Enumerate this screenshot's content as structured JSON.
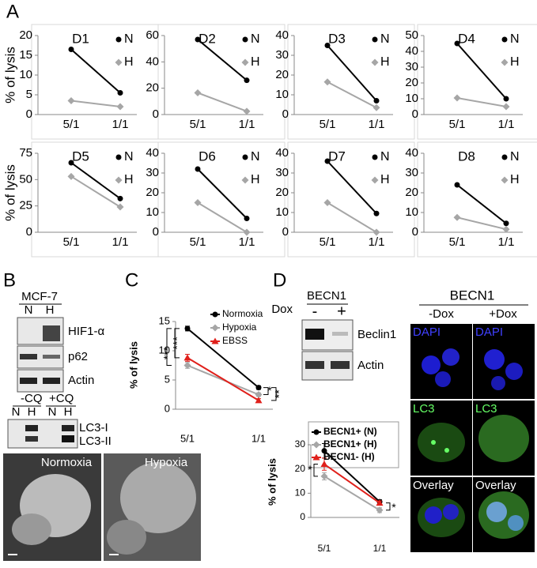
{
  "chart_data": [
    {
      "type": "line",
      "title": "D1",
      "ylabel": "% of lysis",
      "categories": [
        "5/1",
        "1/1"
      ],
      "ylim": [
        0,
        20
      ],
      "yticks": [
        0,
        5,
        10,
        15,
        20
      ],
      "series": [
        {
          "name": "N",
          "color": "#000000",
          "marker": "circle",
          "values": [
            16.5,
            5.5
          ]
        },
        {
          "name": "H",
          "color": "#a6a6a6",
          "marker": "diamond",
          "values": [
            3.5,
            2
          ]
        }
      ]
    },
    {
      "type": "line",
      "title": "D2",
      "categories": [
        "5/1",
        "1/1"
      ],
      "ylim": [
        0,
        60
      ],
      "yticks": [
        0,
        20,
        40,
        60
      ],
      "series": [
        {
          "name": "N",
          "color": "#000000",
          "marker": "circle",
          "values": [
            57,
            26
          ]
        },
        {
          "name": "H",
          "color": "#a6a6a6",
          "marker": "diamond",
          "values": [
            16.5,
            2.5
          ]
        }
      ]
    },
    {
      "type": "line",
      "title": "D3",
      "categories": [
        "5/1",
        "1/1"
      ],
      "ylim": [
        0,
        40
      ],
      "yticks": [
        0,
        10,
        20,
        30,
        40
      ],
      "series": [
        {
          "name": "N",
          "color": "#000000",
          "marker": "circle",
          "values": [
            35,
            7
          ]
        },
        {
          "name": "H",
          "color": "#a6a6a6",
          "marker": "diamond",
          "values": [
            16.5,
            3.5
          ]
        }
      ]
    },
    {
      "type": "line",
      "title": "D4",
      "categories": [
        "5/1",
        "1/1"
      ],
      "ylim": [
        0,
        50
      ],
      "yticks": [
        0,
        10,
        20,
        30,
        40,
        50
      ],
      "series": [
        {
          "name": "N",
          "color": "#000000",
          "marker": "circle",
          "values": [
            45,
            10
          ]
        },
        {
          "name": "H",
          "color": "#a6a6a6",
          "marker": "diamond",
          "values": [
            10.5,
            5
          ]
        }
      ]
    },
    {
      "type": "line",
      "title": "D5",
      "ylabel": "% of lysis",
      "categories": [
        "5/1",
        "1/1"
      ],
      "ylim": [
        0,
        75
      ],
      "yticks": [
        0,
        25,
        50,
        75
      ],
      "series": [
        {
          "name": "N",
          "color": "#000000",
          "marker": "circle",
          "values": [
            66,
            32
          ]
        },
        {
          "name": "H",
          "color": "#a6a6a6",
          "marker": "diamond",
          "values": [
            53,
            24
          ]
        }
      ]
    },
    {
      "type": "line",
      "title": "D6",
      "categories": [
        "5/1",
        "1/1"
      ],
      "ylim": [
        0,
        40
      ],
      "yticks": [
        0,
        10,
        20,
        30,
        40
      ],
      "series": [
        {
          "name": "N",
          "color": "#000000",
          "marker": "circle",
          "values": [
            32,
            7
          ]
        },
        {
          "name": "H",
          "color": "#a6a6a6",
          "marker": "diamond",
          "values": [
            15,
            0
          ]
        }
      ]
    },
    {
      "type": "line",
      "title": "D7",
      "categories": [
        "5/1",
        "1/1"
      ],
      "ylim": [
        0,
        40
      ],
      "yticks": [
        0,
        10,
        20,
        30,
        40
      ],
      "series": [
        {
          "name": "N",
          "color": "#000000",
          "marker": "circle",
          "values": [
            36,
            9.5
          ]
        },
        {
          "name": "H",
          "color": "#a6a6a6",
          "marker": "diamond",
          "values": [
            15,
            0
          ]
        }
      ]
    },
    {
      "type": "line",
      "title": "D8",
      "categories": [
        "5/1",
        "1/1"
      ],
      "ylim": [
        0,
        40
      ],
      "yticks": [
        0,
        10,
        20,
        30,
        40
      ],
      "series": [
        {
          "name": "N",
          "color": "#000000",
          "marker": "circle",
          "values": [
            24,
            4.5
          ]
        },
        {
          "name": "H",
          "color": "#a6a6a6",
          "marker": "diamond",
          "values": [
            7.5,
            1.5
          ]
        }
      ]
    },
    {
      "type": "line",
      "ylabel": "% of lysis",
      "categories": [
        "5/1",
        "1/1"
      ],
      "ylim": [
        0,
        15
      ],
      "yticks": [
        0,
        5,
        10,
        15
      ],
      "annotations": [
        "***",
        "***",
        "*",
        "**"
      ],
      "series": [
        {
          "name": "Normoxia",
          "color": "#000000",
          "marker": "circle",
          "values": [
            13.8,
            3.7
          ],
          "errors": [
            0.4,
            0.3
          ]
        },
        {
          "name": "Hypoxia",
          "color": "#a6a6a6",
          "marker": "diamond",
          "values": [
            7.5,
            2.5
          ],
          "errors": [
            0.5,
            0.3
          ]
        },
        {
          "name": "EBSS",
          "color": "#e0201b",
          "marker": "triangle",
          "values": [
            8.8,
            1.5
          ],
          "errors": [
            0.6,
            0.3
          ]
        }
      ]
    },
    {
      "type": "line",
      "ylabel": "% of lysis",
      "categories": [
        "5/1",
        "1/1"
      ],
      "ylim": [
        0,
        30
      ],
      "yticks": [
        0,
        10,
        20,
        30
      ],
      "annotations": [
        "*",
        "*"
      ],
      "series": [
        {
          "name": "BECN1+ (N)",
          "color": "#000000",
          "marker": "circle",
          "values": [
            27.5,
            6.5
          ],
          "errors": [
            3,
            0.8
          ]
        },
        {
          "name": "BECN1+ (H)",
          "color": "#a6a6a6",
          "marker": "diamond",
          "values": [
            17,
            3
          ],
          "errors": [
            1.5,
            1
          ]
        },
        {
          "name": "BECN1- (H)",
          "color": "#e0201b",
          "marker": "triangle",
          "values": [
            22,
            6
          ],
          "errors": [
            2.5,
            0.8
          ]
        }
      ]
    }
  ],
  "panels": {
    "labels": [
      "A",
      "B",
      "C",
      "D"
    ]
  },
  "blot_b": {
    "cell_line": "MCF-7",
    "lanes": [
      "N",
      "H"
    ],
    "bands": [
      "HIF1-α",
      "p62",
      "Actin"
    ],
    "treatments": [
      "-CQ",
      "+CQ"
    ],
    "cq_lanes": [
      "N",
      "H",
      "N",
      "H"
    ],
    "lc3_bands": [
      "LC3-I",
      "LC3-II"
    ],
    "images": [
      "Normoxia",
      "Hypoxia"
    ]
  },
  "blot_d": {
    "title": "BECN1",
    "treatment": "Dox",
    "lanes": [
      "-",
      "+"
    ],
    "bands": [
      "Beclin1",
      "Actin"
    ]
  },
  "micro_d": {
    "title": "BECN1",
    "columns": [
      "-Dox",
      "+Dox"
    ],
    "rows": [
      "DAPI",
      "DAPI",
      "LC3",
      "LC3",
      "Overlay",
      "Overlay"
    ]
  }
}
